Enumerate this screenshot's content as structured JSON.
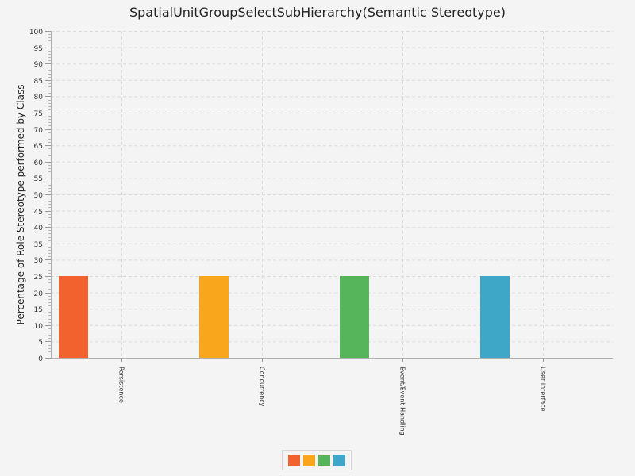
{
  "chart_data": {
    "type": "bar",
    "title": "SpatialUnitGroupSelectSubHierarchy(Semantic Stereotype)",
    "xlabel": "",
    "ylabel": "Percentage of Role Stereotype performed by Class",
    "categories": [
      "Persistence",
      "Concurrency",
      "Event/Event Handling",
      "User Interface"
    ],
    "values": [
      25,
      25,
      25,
      25
    ],
    "bar_colors": [
      "#f2622f",
      "#f9a61c",
      "#56b55a",
      "#3ea6c6"
    ],
    "ylim": [
      0,
      100
    ],
    "yticks": [
      0,
      5,
      10,
      15,
      20,
      25,
      30,
      35,
      40,
      45,
      50,
      55,
      60,
      65,
      70,
      75,
      80,
      85,
      90,
      95,
      100
    ],
    "grid": true,
    "legend_position": "bottom"
  }
}
